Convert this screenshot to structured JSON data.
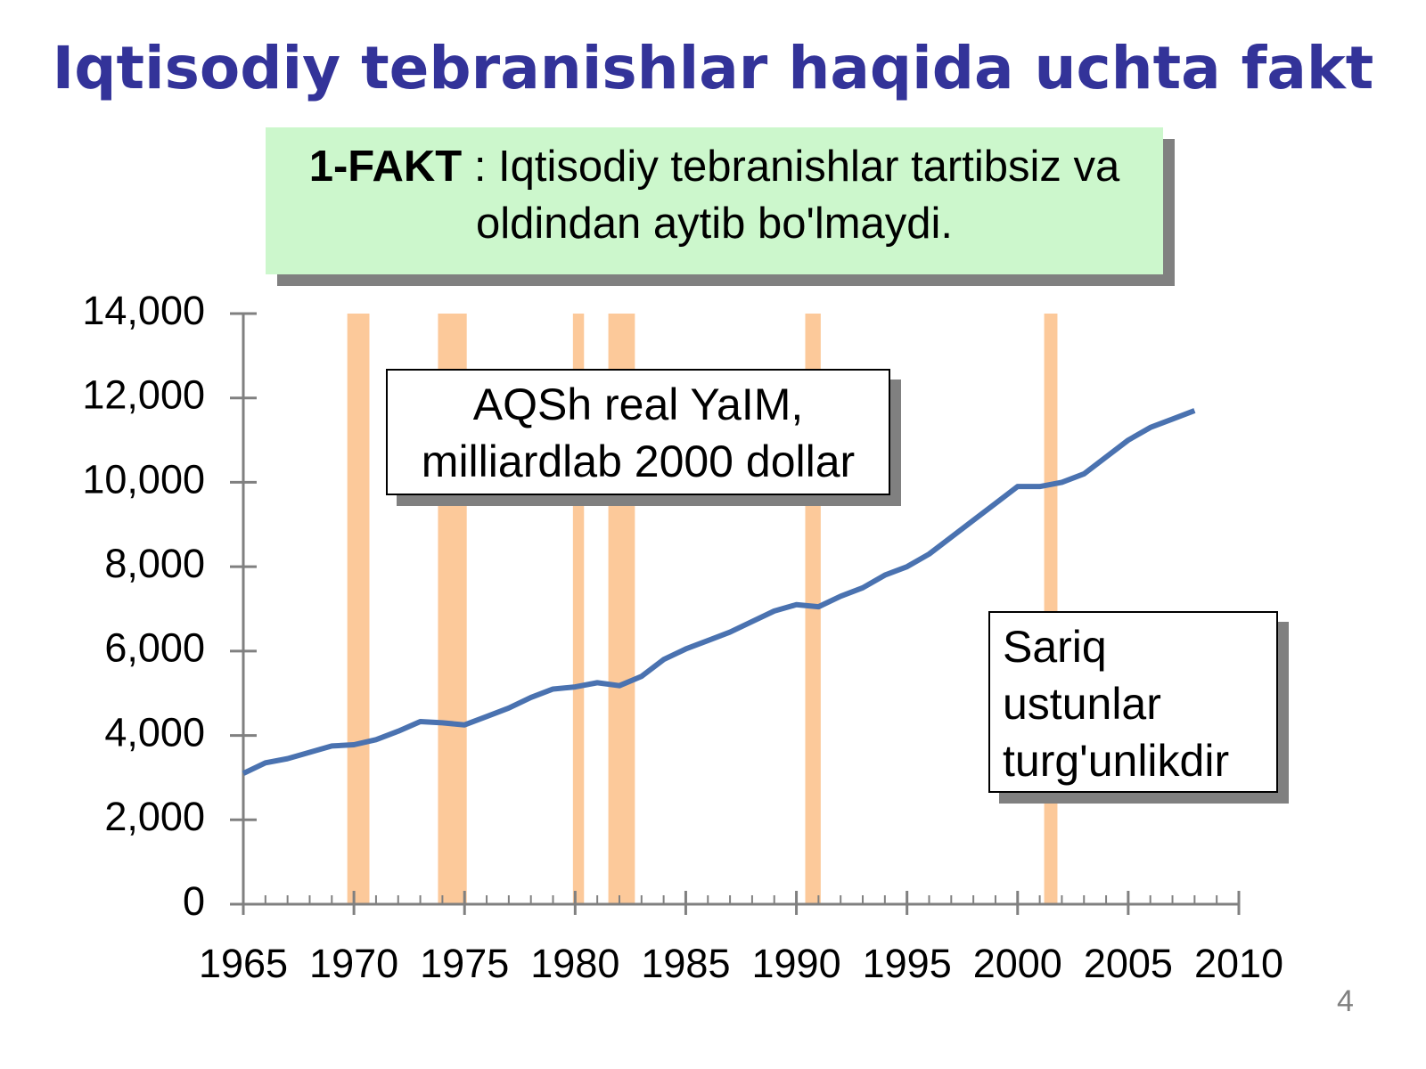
{
  "title": "Iqtisodiy tebranishlar haqida uchta fakt",
  "fact": {
    "label": "1-FAKT",
    "text": " : Iqtisodiy tebranishlar tartibsiz va oldindan aytib bo'lmaydi."
  },
  "page_number": "4",
  "chart_data": {
    "type": "line",
    "annotations": [
      "AQSh real YaIM,\nmilliardlab 2000 dollar",
      "Sariq\nustunlar\nturg'unlikdir"
    ],
    "x": [
      1965,
      1966,
      1967,
      1968,
      1969,
      1970,
      1971,
      1972,
      1973,
      1974,
      1975,
      1976,
      1977,
      1978,
      1979,
      1980,
      1981,
      1982,
      1983,
      1984,
      1985,
      1986,
      1987,
      1988,
      1989,
      1990,
      1991,
      1992,
      1993,
      1994,
      1995,
      1996,
      1997,
      1998,
      1999,
      2000,
      2001,
      2002,
      2003,
      2004,
      2005,
      2006,
      2007,
      2008
    ],
    "values": [
      3100,
      3350,
      3450,
      3600,
      3750,
      3780,
      3900,
      4100,
      4330,
      4300,
      4250,
      4450,
      4650,
      4900,
      5100,
      5150,
      5250,
      5180,
      5400,
      5800,
      6050,
      6250,
      6450,
      6700,
      6950,
      7100,
      7050,
      7300,
      7500,
      7800,
      8000,
      8300,
      8700,
      9100,
      9500,
      9900,
      9900,
      10000,
      10200,
      10600,
      11000,
      11300,
      11500,
      11700
    ],
    "color": "#4a72b0",
    "recessions": [
      [
        1969.7,
        1970.7
      ],
      [
        1973.8,
        1975.1
      ],
      [
        1979.9,
        1980.4
      ],
      [
        1981.5,
        1982.7
      ],
      [
        1990.4,
        1991.1
      ],
      [
        2001.2,
        2001.8
      ]
    ],
    "recession_color": "#fcc99a",
    "xlim": [
      1965,
      2010
    ],
    "xticks": [
      1965,
      1970,
      1975,
      1980,
      1985,
      1990,
      1995,
      2000,
      2005,
      2010
    ],
    "ylim": [
      0,
      14000
    ],
    "yticks": [
      0,
      {
        "value": 2000,
        "label": "2,000"
      },
      {
        "value": 4000,
        "label": "4,000"
      },
      {
        "value": 6000,
        "label": "6,000"
      },
      {
        "value": 8000,
        "label": "8,000"
      },
      {
        "value": 10000,
        "label": "10,000"
      },
      {
        "value": 12000,
        "label": "12,000"
      },
      {
        "value": 14000,
        "label": "14,000"
      }
    ]
  }
}
